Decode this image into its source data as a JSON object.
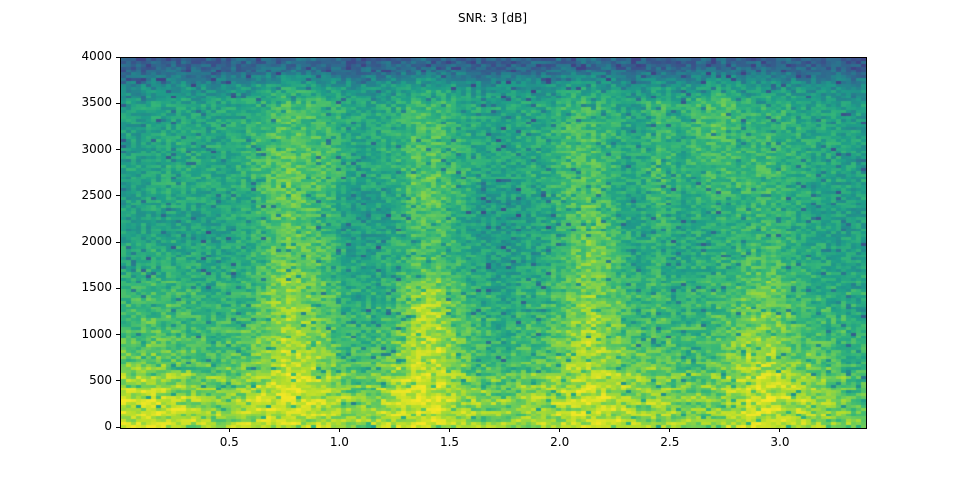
{
  "chart_data": {
    "type": "heatmap",
    "title": "SNR: 3 [dB]",
    "xlabel": "",
    "ylabel": "",
    "xlim": [
      0.004,
      3.386
    ],
    "ylim": [
      0,
      4000
    ],
    "x_tick_values": [
      0.5,
      1.0,
      1.5,
      2.0,
      2.5,
      3.0
    ],
    "x_tick_labels": [
      "0.5",
      "1.0",
      "1.5",
      "2.0",
      "2.5",
      "3.0"
    ],
    "y_tick_values": [
      0,
      500,
      1000,
      1500,
      2000,
      2500,
      3000,
      3500,
      4000
    ],
    "y_tick_labels": [
      "0",
      "500",
      "1000",
      "1500",
      "2000",
      "2500",
      "3000",
      "3500",
      "4000"
    ],
    "legend": "none",
    "grid_lines": "off",
    "colormap": "viridis",
    "colormap_stops": [
      [
        0.0,
        68,
        1,
        84
      ],
      [
        0.1,
        72,
        40,
        120
      ],
      [
        0.2,
        62,
        74,
        137
      ],
      [
        0.3,
        49,
        104,
        142
      ],
      [
        0.4,
        38,
        130,
        142
      ],
      [
        0.5,
        31,
        158,
        137
      ],
      [
        0.6,
        53,
        183,
        121
      ],
      [
        0.7,
        109,
        205,
        89
      ],
      [
        0.8,
        180,
        222,
        44
      ],
      [
        0.9,
        237,
        231,
        37
      ],
      [
        1.0,
        253,
        231,
        37
      ]
    ],
    "grid": {
      "note_rows": "20 frequency bands, row 0 = 3800-4000 Hz (top), row 19 = 0-200 Hz (bottom)",
      "note_cols": "34 time columns spanning 0.0-3.39 s, normalized intensity 0-1",
      "rows": 20,
      "cols": 34,
      "values": [
        [
          0.28,
          0.28,
          0.3,
          0.28,
          0.28,
          0.3,
          0.3,
          0.32,
          0.32,
          0.3,
          0.28,
          0.3,
          0.3,
          0.32,
          0.32,
          0.3,
          0.28,
          0.28,
          0.3,
          0.3,
          0.32,
          0.32,
          0.3,
          0.28,
          0.3,
          0.28,
          0.3,
          0.32,
          0.3,
          0.3,
          0.3,
          0.28,
          0.28,
          0.26
        ],
        [
          0.42,
          0.44,
          0.46,
          0.44,
          0.45,
          0.46,
          0.5,
          0.54,
          0.52,
          0.5,
          0.46,
          0.46,
          0.48,
          0.52,
          0.52,
          0.48,
          0.45,
          0.44,
          0.46,
          0.46,
          0.52,
          0.52,
          0.48,
          0.44,
          0.5,
          0.46,
          0.5,
          0.52,
          0.48,
          0.48,
          0.46,
          0.44,
          0.44,
          0.42
        ],
        [
          0.5,
          0.52,
          0.54,
          0.52,
          0.53,
          0.54,
          0.58,
          0.62,
          0.62,
          0.58,
          0.54,
          0.53,
          0.55,
          0.6,
          0.6,
          0.56,
          0.53,
          0.52,
          0.54,
          0.54,
          0.6,
          0.6,
          0.56,
          0.52,
          0.62,
          0.55,
          0.62,
          0.64,
          0.58,
          0.58,
          0.56,
          0.53,
          0.52,
          0.5
        ],
        [
          0.5,
          0.52,
          0.54,
          0.52,
          0.53,
          0.55,
          0.6,
          0.65,
          0.63,
          0.6,
          0.54,
          0.53,
          0.56,
          0.62,
          0.62,
          0.57,
          0.53,
          0.52,
          0.54,
          0.55,
          0.62,
          0.62,
          0.57,
          0.52,
          0.63,
          0.55,
          0.63,
          0.65,
          0.58,
          0.6,
          0.57,
          0.54,
          0.52,
          0.5
        ],
        [
          0.51,
          0.53,
          0.55,
          0.53,
          0.54,
          0.56,
          0.61,
          0.66,
          0.64,
          0.61,
          0.55,
          0.54,
          0.57,
          0.64,
          0.64,
          0.58,
          0.54,
          0.53,
          0.55,
          0.56,
          0.63,
          0.63,
          0.58,
          0.53,
          0.62,
          0.56,
          0.62,
          0.64,
          0.59,
          0.6,
          0.57,
          0.54,
          0.53,
          0.51
        ],
        [
          0.52,
          0.54,
          0.55,
          0.54,
          0.54,
          0.56,
          0.62,
          0.68,
          0.65,
          0.62,
          0.55,
          0.54,
          0.57,
          0.65,
          0.65,
          0.58,
          0.54,
          0.53,
          0.56,
          0.56,
          0.64,
          0.64,
          0.58,
          0.53,
          0.63,
          0.56,
          0.62,
          0.63,
          0.6,
          0.61,
          0.58,
          0.55,
          0.53,
          0.52
        ],
        [
          0.52,
          0.54,
          0.55,
          0.54,
          0.54,
          0.56,
          0.62,
          0.68,
          0.66,
          0.62,
          0.55,
          0.54,
          0.57,
          0.67,
          0.67,
          0.59,
          0.54,
          0.53,
          0.56,
          0.57,
          0.65,
          0.66,
          0.59,
          0.53,
          0.64,
          0.55,
          0.6,
          0.62,
          0.6,
          0.62,
          0.58,
          0.55,
          0.53,
          0.52
        ],
        [
          0.51,
          0.53,
          0.54,
          0.53,
          0.53,
          0.55,
          0.61,
          0.68,
          0.66,
          0.61,
          0.5,
          0.5,
          0.56,
          0.66,
          0.66,
          0.58,
          0.5,
          0.49,
          0.52,
          0.55,
          0.64,
          0.66,
          0.58,
          0.52,
          0.62,
          0.54,
          0.58,
          0.6,
          0.59,
          0.61,
          0.57,
          0.54,
          0.52,
          0.51
        ],
        [
          0.5,
          0.52,
          0.53,
          0.52,
          0.52,
          0.54,
          0.6,
          0.68,
          0.65,
          0.6,
          0.49,
          0.49,
          0.55,
          0.64,
          0.64,
          0.56,
          0.5,
          0.48,
          0.51,
          0.54,
          0.62,
          0.68,
          0.6,
          0.51,
          0.6,
          0.53,
          0.56,
          0.58,
          0.58,
          0.6,
          0.56,
          0.53,
          0.51,
          0.5
        ],
        [
          0.5,
          0.52,
          0.54,
          0.52,
          0.52,
          0.54,
          0.6,
          0.68,
          0.65,
          0.6,
          0.5,
          0.5,
          0.55,
          0.63,
          0.63,
          0.56,
          0.5,
          0.49,
          0.52,
          0.54,
          0.63,
          0.7,
          0.62,
          0.52,
          0.58,
          0.53,
          0.55,
          0.57,
          0.59,
          0.62,
          0.57,
          0.54,
          0.52,
          0.5
        ],
        [
          0.55,
          0.56,
          0.55,
          0.54,
          0.54,
          0.55,
          0.62,
          0.7,
          0.67,
          0.62,
          0.52,
          0.52,
          0.56,
          0.64,
          0.64,
          0.57,
          0.52,
          0.5,
          0.53,
          0.55,
          0.64,
          0.72,
          0.64,
          0.53,
          0.58,
          0.54,
          0.56,
          0.57,
          0.6,
          0.63,
          0.58,
          0.55,
          0.53,
          0.51
        ],
        [
          0.55,
          0.56,
          0.56,
          0.55,
          0.55,
          0.56,
          0.63,
          0.72,
          0.68,
          0.63,
          0.53,
          0.53,
          0.57,
          0.66,
          0.66,
          0.58,
          0.53,
          0.51,
          0.54,
          0.56,
          0.65,
          0.73,
          0.65,
          0.54,
          0.58,
          0.54,
          0.56,
          0.58,
          0.62,
          0.65,
          0.6,
          0.56,
          0.54,
          0.52
        ],
        [
          0.6,
          0.62,
          0.6,
          0.58,
          0.57,
          0.58,
          0.65,
          0.74,
          0.7,
          0.64,
          0.55,
          0.55,
          0.6,
          0.74,
          0.74,
          0.62,
          0.55,
          0.53,
          0.56,
          0.58,
          0.66,
          0.75,
          0.66,
          0.58,
          0.6,
          0.56,
          0.57,
          0.6,
          0.66,
          0.7,
          0.63,
          0.58,
          0.56,
          0.54
        ],
        [
          0.6,
          0.62,
          0.61,
          0.59,
          0.58,
          0.6,
          0.67,
          0.76,
          0.72,
          0.66,
          0.57,
          0.57,
          0.62,
          0.78,
          0.78,
          0.64,
          0.57,
          0.55,
          0.58,
          0.6,
          0.68,
          0.76,
          0.68,
          0.6,
          0.62,
          0.58,
          0.58,
          0.62,
          0.68,
          0.72,
          0.65,
          0.6,
          0.58,
          0.55
        ],
        [
          0.62,
          0.64,
          0.62,
          0.6,
          0.6,
          0.62,
          0.69,
          0.78,
          0.74,
          0.68,
          0.58,
          0.58,
          0.64,
          0.8,
          0.78,
          0.66,
          0.58,
          0.56,
          0.6,
          0.62,
          0.7,
          0.78,
          0.7,
          0.62,
          0.64,
          0.6,
          0.6,
          0.64,
          0.7,
          0.74,
          0.66,
          0.62,
          0.6,
          0.56
        ],
        [
          0.66,
          0.68,
          0.65,
          0.62,
          0.62,
          0.64,
          0.72,
          0.8,
          0.76,
          0.7,
          0.6,
          0.6,
          0.66,
          0.82,
          0.8,
          0.68,
          0.6,
          0.58,
          0.62,
          0.64,
          0.72,
          0.8,
          0.72,
          0.64,
          0.66,
          0.62,
          0.62,
          0.66,
          0.73,
          0.77,
          0.68,
          0.64,
          0.62,
          0.58
        ],
        [
          0.68,
          0.7,
          0.67,
          0.64,
          0.64,
          0.66,
          0.75,
          0.82,
          0.78,
          0.72,
          0.63,
          0.64,
          0.72,
          0.84,
          0.82,
          0.7,
          0.63,
          0.6,
          0.64,
          0.67,
          0.74,
          0.8,
          0.73,
          0.66,
          0.68,
          0.64,
          0.64,
          0.68,
          0.76,
          0.8,
          0.72,
          0.68,
          0.65,
          0.6
        ],
        [
          0.76,
          0.78,
          0.74,
          0.71,
          0.7,
          0.73,
          0.8,
          0.85,
          0.82,
          0.76,
          0.68,
          0.7,
          0.78,
          0.86,
          0.84,
          0.74,
          0.68,
          0.66,
          0.7,
          0.72,
          0.78,
          0.83,
          0.77,
          0.74,
          0.74,
          0.7,
          0.68,
          0.72,
          0.8,
          0.84,
          0.77,
          0.73,
          0.7,
          0.64
        ],
        [
          0.84,
          0.85,
          0.8,
          0.76,
          0.74,
          0.77,
          0.83,
          0.87,
          0.84,
          0.79,
          0.72,
          0.74,
          0.8,
          0.88,
          0.86,
          0.78,
          0.72,
          0.7,
          0.74,
          0.76,
          0.8,
          0.85,
          0.8,
          0.76,
          0.76,
          0.72,
          0.7,
          0.74,
          0.82,
          0.86,
          0.8,
          0.76,
          0.72,
          0.66
        ],
        [
          0.82,
          0.83,
          0.8,
          0.76,
          0.75,
          0.78,
          0.82,
          0.85,
          0.83,
          0.79,
          0.74,
          0.76,
          0.8,
          0.86,
          0.84,
          0.78,
          0.73,
          0.72,
          0.75,
          0.77,
          0.8,
          0.84,
          0.8,
          0.77,
          0.76,
          0.73,
          0.72,
          0.75,
          0.82,
          0.85,
          0.8,
          0.77,
          0.73,
          0.68
        ]
      ]
    }
  }
}
